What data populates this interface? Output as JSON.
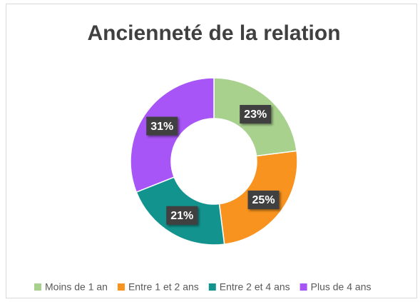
{
  "chart_data": {
    "type": "donut",
    "title": "Ancienneté de la relation",
    "categories": [
      "Moins de 1 an",
      "Entre 1 et 2 ans",
      "Entre 2 et 4 ans",
      "Plus de 4 ans"
    ],
    "values": [
      23,
      25,
      21,
      31
    ],
    "value_labels": [
      "23%",
      "25%",
      "21%",
      "31%"
    ],
    "colors": [
      "#a9d18e",
      "#f7931e",
      "#13938e",
      "#a855f7"
    ],
    "legend": "bottom"
  }
}
